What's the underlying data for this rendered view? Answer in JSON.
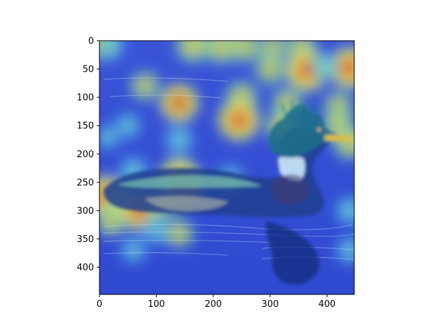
{
  "chart_data": {
    "type": "heatmap",
    "subtype": "image overlaid with attention heatmap (jet colormap)",
    "image_description_subject": "merganser duck swimming on water",
    "x_range": [
      0,
      448
    ],
    "y_range": [
      448,
      0
    ],
    "y_inverted": true,
    "x_ticks": [
      0,
      100,
      200,
      300,
      400
    ],
    "y_ticks": [
      0,
      50,
      100,
      150,
      200,
      250,
      300,
      350,
      400
    ],
    "colormap": "jet",
    "grid": false,
    "heat_regions": [
      {
        "x": 5,
        "y": 5,
        "intensity": 0.75
      },
      {
        "x": 20,
        "y": 10,
        "intensity": 0.45
      },
      {
        "x": 165,
        "y": 8,
        "intensity": 0.8
      },
      {
        "x": 215,
        "y": 10,
        "intensity": 0.8
      },
      {
        "x": 255,
        "y": 10,
        "intensity": 0.7
      },
      {
        "x": 305,
        "y": 12,
        "intensity": 0.6
      },
      {
        "x": 355,
        "y": 12,
        "intensity": 0.65
      },
      {
        "x": 300,
        "y": 50,
        "intensity": 0.65
      },
      {
        "x": 365,
        "y": 52,
        "intensity": 1.0
      },
      {
        "x": 440,
        "y": 48,
        "intensity": 0.95
      },
      {
        "x": 395,
        "y": 45,
        "intensity": 0.5
      },
      {
        "x": 80,
        "y": 80,
        "intensity": 0.6
      },
      {
        "x": 140,
        "y": 110,
        "intensity": 0.85
      },
      {
        "x": 250,
        "y": 100,
        "intensity": 0.7
      },
      {
        "x": 330,
        "y": 110,
        "intensity": 0.65
      },
      {
        "x": 420,
        "y": 115,
        "intensity": 0.6
      },
      {
        "x": 245,
        "y": 140,
        "intensity": 0.95
      },
      {
        "x": 320,
        "y": 150,
        "intensity": 0.7
      },
      {
        "x": 420,
        "y": 150,
        "intensity": 0.7
      },
      {
        "x": 440,
        "y": 180,
        "intensity": 0.75
      },
      {
        "x": 50,
        "y": 150,
        "intensity": 0.45
      },
      {
        "x": 140,
        "y": 175,
        "intensity": 0.55
      },
      {
        "x": 15,
        "y": 170,
        "intensity": 0.4
      },
      {
        "x": 60,
        "y": 230,
        "intensity": 0.55
      },
      {
        "x": 140,
        "y": 240,
        "intensity": 0.85
      },
      {
        "x": 145,
        "y": 255,
        "intensity": 1.0
      },
      {
        "x": 230,
        "y": 245,
        "intensity": 0.55
      },
      {
        "x": 10,
        "y": 275,
        "intensity": 0.95
      },
      {
        "x": 40,
        "y": 290,
        "intensity": 0.8
      },
      {
        "x": 70,
        "y": 300,
        "intensity": 0.9
      },
      {
        "x": 110,
        "y": 290,
        "intensity": 0.6
      },
      {
        "x": 20,
        "y": 320,
        "intensity": 0.6
      },
      {
        "x": 100,
        "y": 335,
        "intensity": 0.5
      },
      {
        "x": 140,
        "y": 340,
        "intensity": 0.6
      },
      {
        "x": 60,
        "y": 370,
        "intensity": 0.45
      },
      {
        "x": 440,
        "y": 300,
        "intensity": 0.55
      },
      {
        "x": 440,
        "y": 370,
        "intensity": 0.5
      }
    ]
  }
}
